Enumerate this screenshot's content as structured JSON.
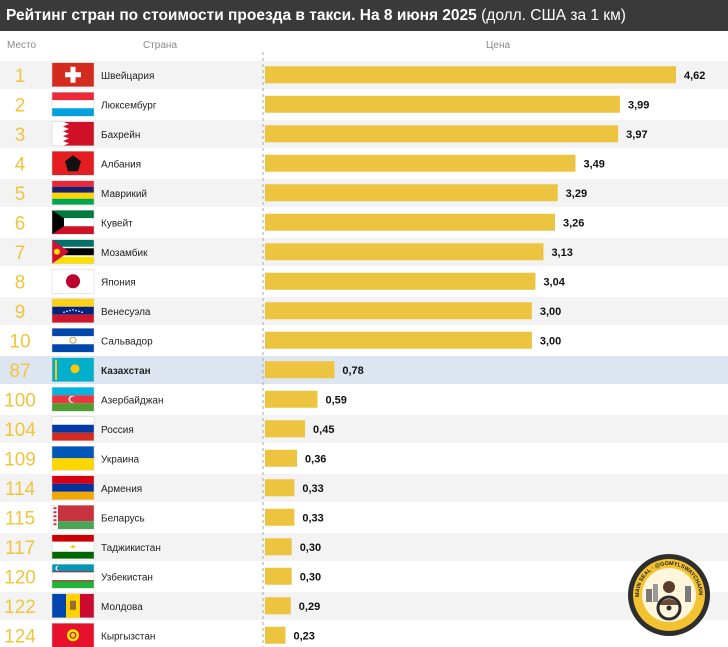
{
  "header": {
    "title_bold": "Рейтинг стран по стоимости проезда в такси. На 8 июня 2025",
    "title_rest": "(долл. США за 1 км)"
  },
  "columns": {
    "rank": "Место",
    "country": "Страна",
    "price": "Цена"
  },
  "colors": {
    "bar": "#ecc43f",
    "rank": "#f0c43c",
    "row_odd": "#f3f3f3",
    "row_even": "#ffffff",
    "highlight": "#dde6f0",
    "title_bg": "#3a3a3a"
  },
  "watermark": {
    "text": "THE MAIN SEAL · @GOMYLSWAYCHANNEL.IO"
  },
  "chart_data": {
    "type": "bar",
    "orientation": "horizontal",
    "ranks": [
      "1",
      "2",
      "3",
      "4",
      "5",
      "6",
      "7",
      "8",
      "9",
      "10",
      "87",
      "100",
      "104",
      "109",
      "114",
      "115",
      "117",
      "120",
      "122",
      "124"
    ],
    "categories": [
      "Швейцария",
      "Люксембург",
      "Бахрейн",
      "Албания",
      "Маврикий",
      "Кувейт",
      "Мозамбик",
      "Япония",
      "Венесуэла",
      "Сальвадор",
      "Казахстан",
      "Азербайджан",
      "Россия",
      "Украина",
      "Армения",
      "Беларусь",
      "Таджикистан",
      "Узбекистан",
      "Молдова",
      "Кыргызстан"
    ],
    "values": [
      4.62,
      3.99,
      3.97,
      3.49,
      3.29,
      3.26,
      3.13,
      3.04,
      3.0,
      3.0,
      0.78,
      0.59,
      0.45,
      0.36,
      0.33,
      0.33,
      0.3,
      0.3,
      0.29,
      0.23
    ],
    "value_labels": [
      "4,62",
      "3,99",
      "3,97",
      "3,49",
      "3,29",
      "3,26",
      "3,13",
      "3,04",
      "3,00",
      "3,00",
      "0,78",
      "0,59",
      "0,45",
      "0,36",
      "0,33",
      "0,33",
      "0,30",
      "0,30",
      "0,29",
      "0,23"
    ],
    "flags": [
      "switzerland-flag-icon",
      "luxembourg-flag-icon",
      "bahrain-flag-icon",
      "albania-flag-icon",
      "mauritius-flag-icon",
      "kuwait-flag-icon",
      "mozambique-flag-icon",
      "japan-flag-icon",
      "venezuela-flag-icon",
      "el-salvador-flag-icon",
      "kazakhstan-flag-icon",
      "azerbaijan-flag-icon",
      "russia-flag-icon",
      "ukraine-flag-icon",
      "armenia-flag-icon",
      "belarus-flag-icon",
      "tajikistan-flag-icon",
      "uzbekistan-flag-icon",
      "moldova-flag-icon",
      "kyrgyzstan-flag-icon"
    ],
    "highlighted": "Казахстан",
    "xlim": [
      0,
      4.62
    ],
    "grid": false
  }
}
